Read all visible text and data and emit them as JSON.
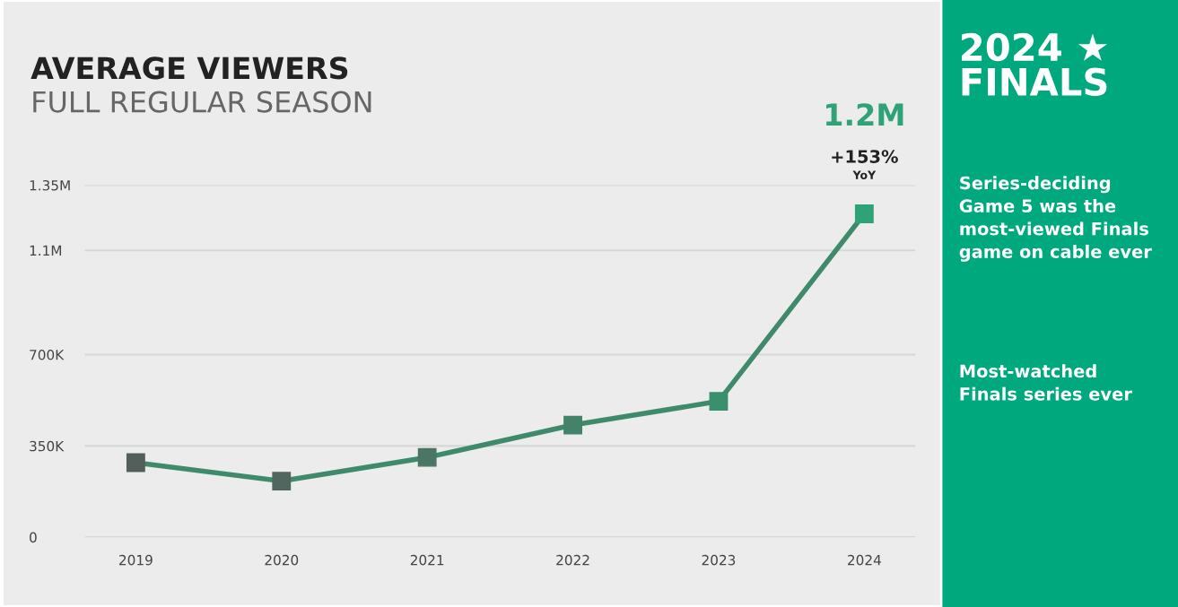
{
  "chart_data": [
    {
      "type": "line",
      "title": "AVERAGE VIEWERS",
      "subtitle": "FULL REGULAR SEASON",
      "categories": [
        "2019",
        "2020",
        "2021",
        "2022",
        "2023",
        "2024"
      ],
      "series": [
        {
          "color": "#3f8a6a",
          "colors": [
            "#525f5b",
            "#50665f",
            "#4b7565",
            "#44836a",
            "#3a8f6d",
            "#2fa277"
          ],
          "values": [
            286000,
            215000,
            306000,
            430000,
            521000,
            1240000
          ]
        }
      ],
      "ylim": [
        0,
        1350000
      ],
      "yticks": [
        0,
        {
          "value": 350000,
          "label": "350K"
        },
        {
          "value": 700000,
          "label": "700K"
        },
        {
          "value": 1100000,
          "label": "1.1M"
        },
        {
          "value": 1350000,
          "label": "1.35M"
        }
      ],
      "grid": "y",
      "marker": "square",
      "line_style": "solid",
      "legend": false,
      "annotations": [
        {
          "text": "1.2M",
          "x": "2024",
          "y": 1240000
        },
        "+153%",
        "YoY"
      ]
    },
    {
      "type": "other",
      "title": "2024 ★\nFINALS",
      "color": "#00a87e",
      "annotations": [
        "Series-deciding Game 5 was the most-viewed Finals game on cable ever",
        "Most-watched Finals series ever"
      ]
    }
  ]
}
